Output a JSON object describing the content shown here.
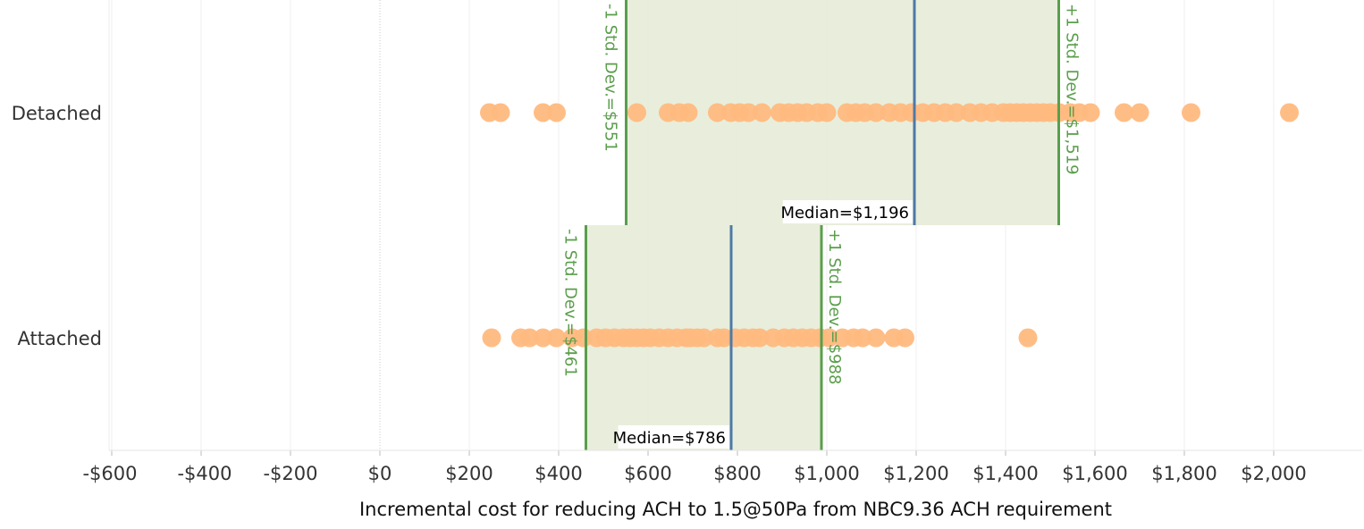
{
  "chart_data": {
    "type": "scatter",
    "title": "",
    "xlabel": "Incremental cost for reducing ACH to 1.5@50Pa from NBC9.36 ACH requirement",
    "ylabel": "",
    "xlim": [
      -640,
      2200
    ],
    "x_ticks": [
      {
        "value": -600,
        "label": "-$600"
      },
      {
        "value": -400,
        "label": "-$400"
      },
      {
        "value": -200,
        "label": "-$200"
      },
      {
        "value": 0,
        "label": "$0"
      },
      {
        "value": 200,
        "label": "$200"
      },
      {
        "value": 400,
        "label": "$400"
      },
      {
        "value": 600,
        "label": "$600"
      },
      {
        "value": 800,
        "label": "$800"
      },
      {
        "value": 1000,
        "label": "$1,000"
      },
      {
        "value": 1200,
        "label": "$1,200"
      },
      {
        "value": 1400,
        "label": "$1,400"
      },
      {
        "value": 1600,
        "label": "$1,600"
      },
      {
        "value": 1800,
        "label": "$1,800"
      },
      {
        "value": 2000,
        "label": "$2,000"
      }
    ],
    "grid": "vertical",
    "colors": {
      "dot": "#ffb97f",
      "band": "#e4ebd5",
      "std_line": "#5a9e4b",
      "median_line": "#4e79a7"
    },
    "categories": [
      "Detached",
      "Attached"
    ],
    "series": [
      {
        "category": "Detached",
        "x": [
          245,
          270,
          365,
          395,
          575,
          645,
          670,
          690,
          755,
          785,
          805,
          825,
          855,
          895,
          915,
          935,
          955,
          980,
          1000,
          1045,
          1065,
          1085,
          1110,
          1140,
          1165,
          1190,
          1215,
          1240,
          1265,
          1290,
          1320,
          1345,
          1370,
          1395,
          1410,
          1425,
          1440,
          1455,
          1470,
          1485,
          1500,
          1520,
          1545,
          1565,
          1590,
          1665,
          1700,
          1815,
          2035
        ],
        "median": 1196,
        "median_label": "Median=$1,196",
        "minus_std": 551,
        "minus_std_label": "-1 Std. Dev.=$551",
        "plus_std": 1519,
        "plus_std_label": "+1 Std. Dev.=$1,519"
      },
      {
        "category": "Attached",
        "x": [
          250,
          315,
          335,
          365,
          395,
          430,
          455,
          485,
          505,
          525,
          545,
          560,
          575,
          590,
          605,
          625,
          645,
          665,
          685,
          695,
          710,
          725,
          755,
          770,
          795,
          815,
          835,
          850,
          880,
          905,
          925,
          945,
          965,
          985,
          1005,
          1035,
          1060,
          1080,
          1110,
          1150,
          1175,
          1450
        ],
        "median": 786,
        "median_label": "Median=$786",
        "minus_std": 461,
        "minus_std_label": "-1 Std. Dev.=$461",
        "plus_std": 988,
        "plus_std_label": "+1 Std. Dev.=$988"
      }
    ]
  }
}
